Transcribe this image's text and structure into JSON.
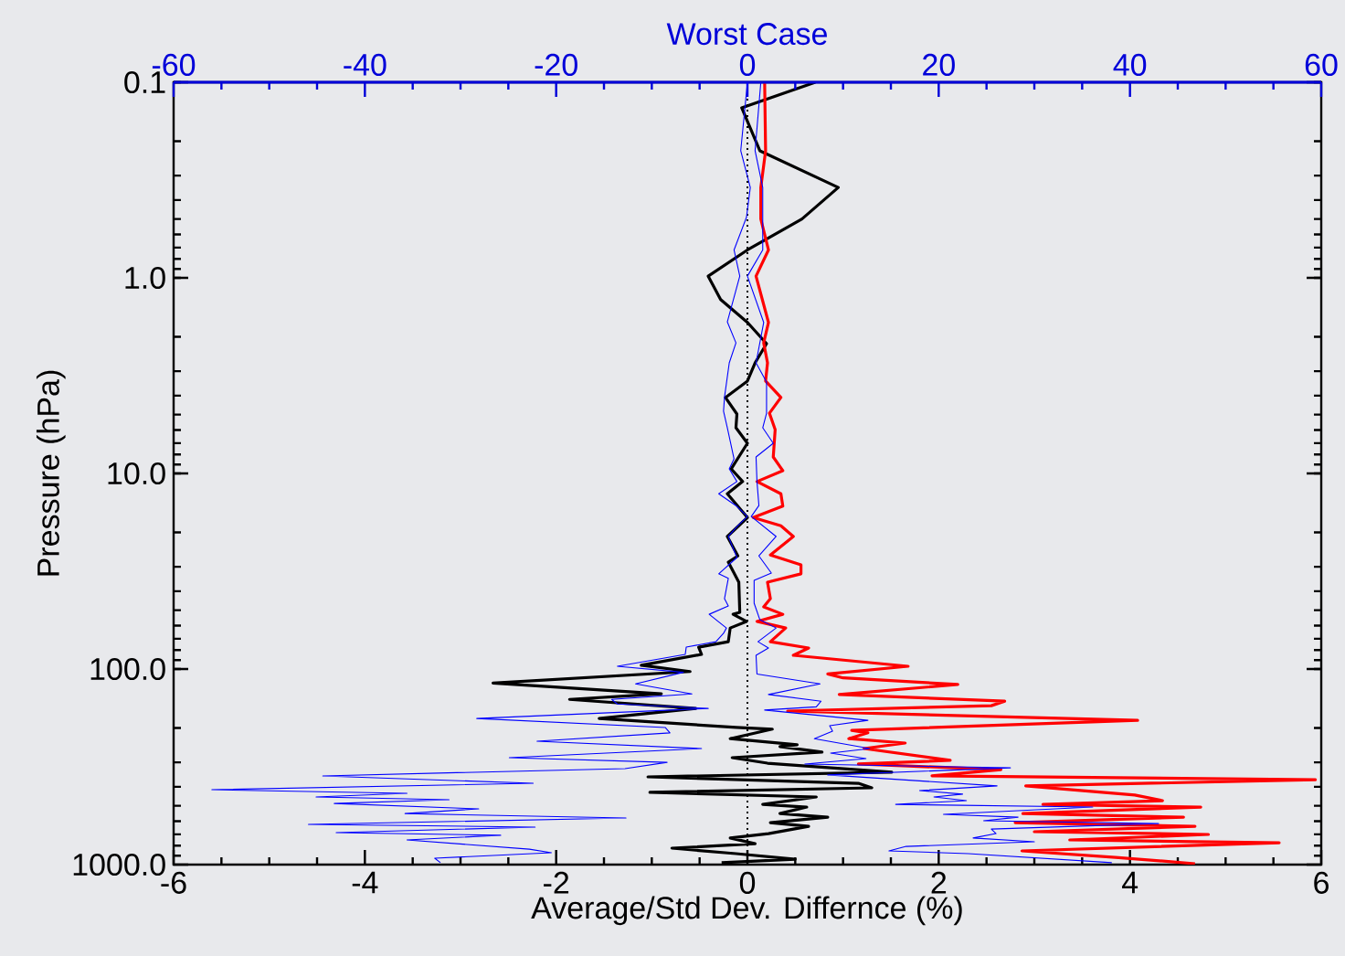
{
  "chart_data": {
    "type": "line",
    "xlabel": "Average/Std Dev. Differnce (%)",
    "ylabel": "Pressure (hPa)",
    "x2label": "Worst Case",
    "xlim": [
      -6,
      6
    ],
    "xticks": [
      -6,
      -4,
      -2,
      0,
      2,
      4,
      6
    ],
    "x2lim": [
      -60,
      60
    ],
    "x2ticks": [
      -60,
      -40,
      -20,
      0,
      20,
      40,
      60
    ],
    "ylim": [
      1000,
      0.1
    ],
    "yticks": [
      {
        "value": 0.1,
        "label": "0.1"
      },
      {
        "value": 1,
        "label": "1.0"
      },
      {
        "value": 10,
        "label": "10.0"
      },
      {
        "value": 100,
        "label": "100.0"
      },
      {
        "value": 1000,
        "label": "1000.0"
      }
    ],
    "log": "y",
    "marker": "none",
    "ref_lines": [
      {
        "axis": "x",
        "value": 0,
        "color": "#000000",
        "line_style": "dotted"
      }
    ],
    "series": [
      {
        "color": "#000000",
        "x": [
          0.71,
          -0.06,
          0.13,
          0.95,
          0.57,
          0.0,
          -0.41,
          -0.28,
          0.0,
          0.2,
          0.08,
          0.0,
          -0.23,
          -0.11,
          -0.12,
          0.0,
          -0.17,
          -0.05,
          -0.21,
          0.0,
          -0.21,
          -0.1,
          -0.2,
          -0.09,
          -0.08,
          -0.15,
          -0.01,
          -0.18,
          -0.2,
          -0.51,
          -0.48,
          -1.11,
          -0.6,
          -2.66,
          -0.9,
          -1.86,
          -0.54,
          -1.55,
          -0.12,
          0.26,
          -0.18,
          0.52,
          0.34,
          0.78,
          -0.16,
          0.21,
          1.51,
          -1.04,
          1.16,
          1.3,
          -1.02,
          0.72,
          0.16,
          0.62,
          0.34,
          0.84,
          0.24,
          0.64,
          0.22,
          -0.18,
          0.08,
          -0.79,
          -0.12,
          0.5,
          -0.27
        ],
        "values": [
          0.1,
          0.135,
          0.224,
          0.345,
          0.5,
          0.72,
          0.98,
          1.29,
          1.69,
          2.17,
          2.72,
          3.37,
          4.09,
          4.97,
          5.84,
          7.01,
          9.48,
          11.0,
          12.7,
          16.8,
          21.0,
          26.4,
          28.4,
          36.0,
          51.3,
          52.5,
          57.1,
          61.7,
          72.5,
          77.3,
          84.2,
          95.7,
          103,
          118,
          134,
          143,
          159,
          179,
          199,
          203,
          227,
          244,
          249,
          266,
          284,
          303,
          337,
          356,
          384,
          405,
          427,
          451,
          492,
          508,
          548,
          572,
          610,
          637,
          694,
          731,
          782,
          824,
          879,
          938,
          977
        ]
      },
      {
        "color": "#ff0000",
        "x": [
          0.18,
          0.19,
          0.14,
          0.14,
          0.22,
          0.09,
          0.22,
          0.17,
          0.21,
          0.19,
          0.35,
          0.23,
          0.29,
          0.27,
          0.37,
          0.1,
          0.35,
          0.37,
          0.06,
          0.35,
          0.48,
          0.24,
          0.56,
          0.56,
          0.21,
          0.24,
          0.17,
          0.37,
          0.1,
          0.4,
          0.24,
          0.64,
          0.48,
          1.68,
          0.84,
          1.0,
          2.2,
          0.96,
          2.69,
          2.55,
          0.42,
          4.08,
          1.09,
          1.26,
          1.06,
          1.65,
          1.22,
          2.12,
          1.16,
          2.65,
          1.93,
          5.94,
          2.91,
          4.05,
          4.34,
          3.09,
          4.74,
          2.88,
          4.56,
          2.8,
          4.68,
          3.0,
          4.82,
          3.37,
          5.56,
          2.87,
          3.85,
          4.68
        ],
        "values": [
          0.1,
          0.224,
          0.345,
          0.5,
          0.72,
          0.98,
          1.69,
          2.15,
          2.72,
          3.37,
          4.09,
          4.92,
          5.97,
          8.24,
          9.68,
          11.0,
          12.7,
          14.7,
          16.8,
          18.5,
          21.0,
          26.1,
          29.3,
          32.6,
          36.0,
          43.7,
          48.1,
          52.5,
          57.1,
          61.7,
          72.5,
          78.1,
          85.1,
          96.8,
          106,
          111,
          120,
          135,
          146,
          154,
          164,
          183,
          206,
          212,
          227,
          239,
          255,
          293,
          306,
          327,
          352,
          368,
          396,
          441,
          471,
          492,
          508,
          548,
          572,
          610,
          637,
          679,
          701,
          748,
          773,
          851,
          918,
          989
        ]
      },
      {
        "color": "#0000ff",
        "axis": "x2",
        "x": [
          0.0,
          -0.7,
          0.3,
          -0.1,
          -1.4,
          -0.8,
          -2.1,
          -1.2,
          -1.9,
          -2.4,
          -2.5,
          -2.1,
          -1.4,
          -1.9,
          -1.1,
          -3.0,
          -1.2,
          0.0,
          -1.0,
          -2.0,
          -1.1,
          -3.0,
          -2.0,
          -2.4,
          -2.0,
          -4.0,
          -2.2,
          -2.5,
          -3.3,
          -6.4,
          -6.5,
          -13.6,
          -6.7,
          -11.7,
          -5.8,
          -14.2,
          -13.6,
          -4.1,
          -28.3,
          -8.6,
          -8.1,
          -22.0,
          -4.8,
          -24.9,
          -8.4,
          -12.8,
          -44.4,
          -22.4,
          -56.0,
          -35.6,
          -45.1,
          -31.2,
          -43.2,
          -28.1,
          -35.8,
          -12.7,
          -45.9,
          -22.2,
          -43.0,
          -25.8,
          -35.6,
          -22.8,
          -20.5,
          -32.7,
          -32.1
        ],
        "values": [
          0.1,
          0.224,
          0.345,
          0.49,
          0.72,
          0.98,
          1.68,
          2.15,
          2.72,
          4.09,
          4.81,
          5.84,
          8.42,
          9.48,
          11.0,
          12.7,
          14.6,
          16.6,
          18.5,
          21.0,
          26.9,
          32.6,
          34.4,
          43.7,
          47.6,
          52.5,
          61.7,
          65.7,
          72.5,
          77.3,
          84.2,
          96.8,
          104,
          119,
          134,
          143,
          151,
          159,
          179,
          199,
          212,
          234,
          255,
          284,
          300,
          323,
          352,
          384,
          414,
          432,
          451,
          466,
          487,
          519,
          548,
          578,
          623,
          643,
          686,
          708,
          748,
          834,
          869,
          927,
          977
        ]
      },
      {
        "color": "#0000ff",
        "axis": "x2",
        "x": [
          1.4,
          0.8,
          1.6,
          1.6,
          0.0,
          1.7,
          0.9,
          2.0,
          2.0,
          1.6,
          2.7,
          0.9,
          1.0,
          1.2,
          0.4,
          3.0,
          1.2,
          2.5,
          0.7,
          0.7,
          1.3,
          3.0,
          1.1,
          2.2,
          0.9,
          1.0,
          7.6,
          2.2,
          7.7,
          7.2,
          1.8,
          12.6,
          8.6,
          8.9,
          7.0,
          12.8,
          8.7,
          12.4,
          6.0,
          27.5,
          8.4,
          26.1,
          18.0,
          22.5,
          19.5,
          22.9,
          15.5,
          36.1,
          20.5,
          28.3,
          24.7,
          43.0,
          25.5,
          26.0,
          23.6,
          30.0,
          16.6,
          14.8,
          23.1,
          38.1
        ],
        "values": [
          0.1,
          0.224,
          0.345,
          0.72,
          0.98,
          1.69,
          2.72,
          3.41,
          4.92,
          5.84,
          7.01,
          8.24,
          11.0,
          14.6,
          16.6,
          21.0,
          26.4,
          32.3,
          35.2,
          46.1,
          56.0,
          61.7,
          72.5,
          78.1,
          85.1,
          106,
          119,
          135,
          146,
          156,
          162,
          183,
          195,
          208,
          227,
          255,
          269,
          287,
          306,
          320,
          348,
          396,
          418,
          436,
          451,
          471,
          492,
          508,
          553,
          572,
          597,
          617,
          658,
          694,
          731,
          764,
          807,
          851,
          879,
          977
        ]
      }
    ]
  }
}
